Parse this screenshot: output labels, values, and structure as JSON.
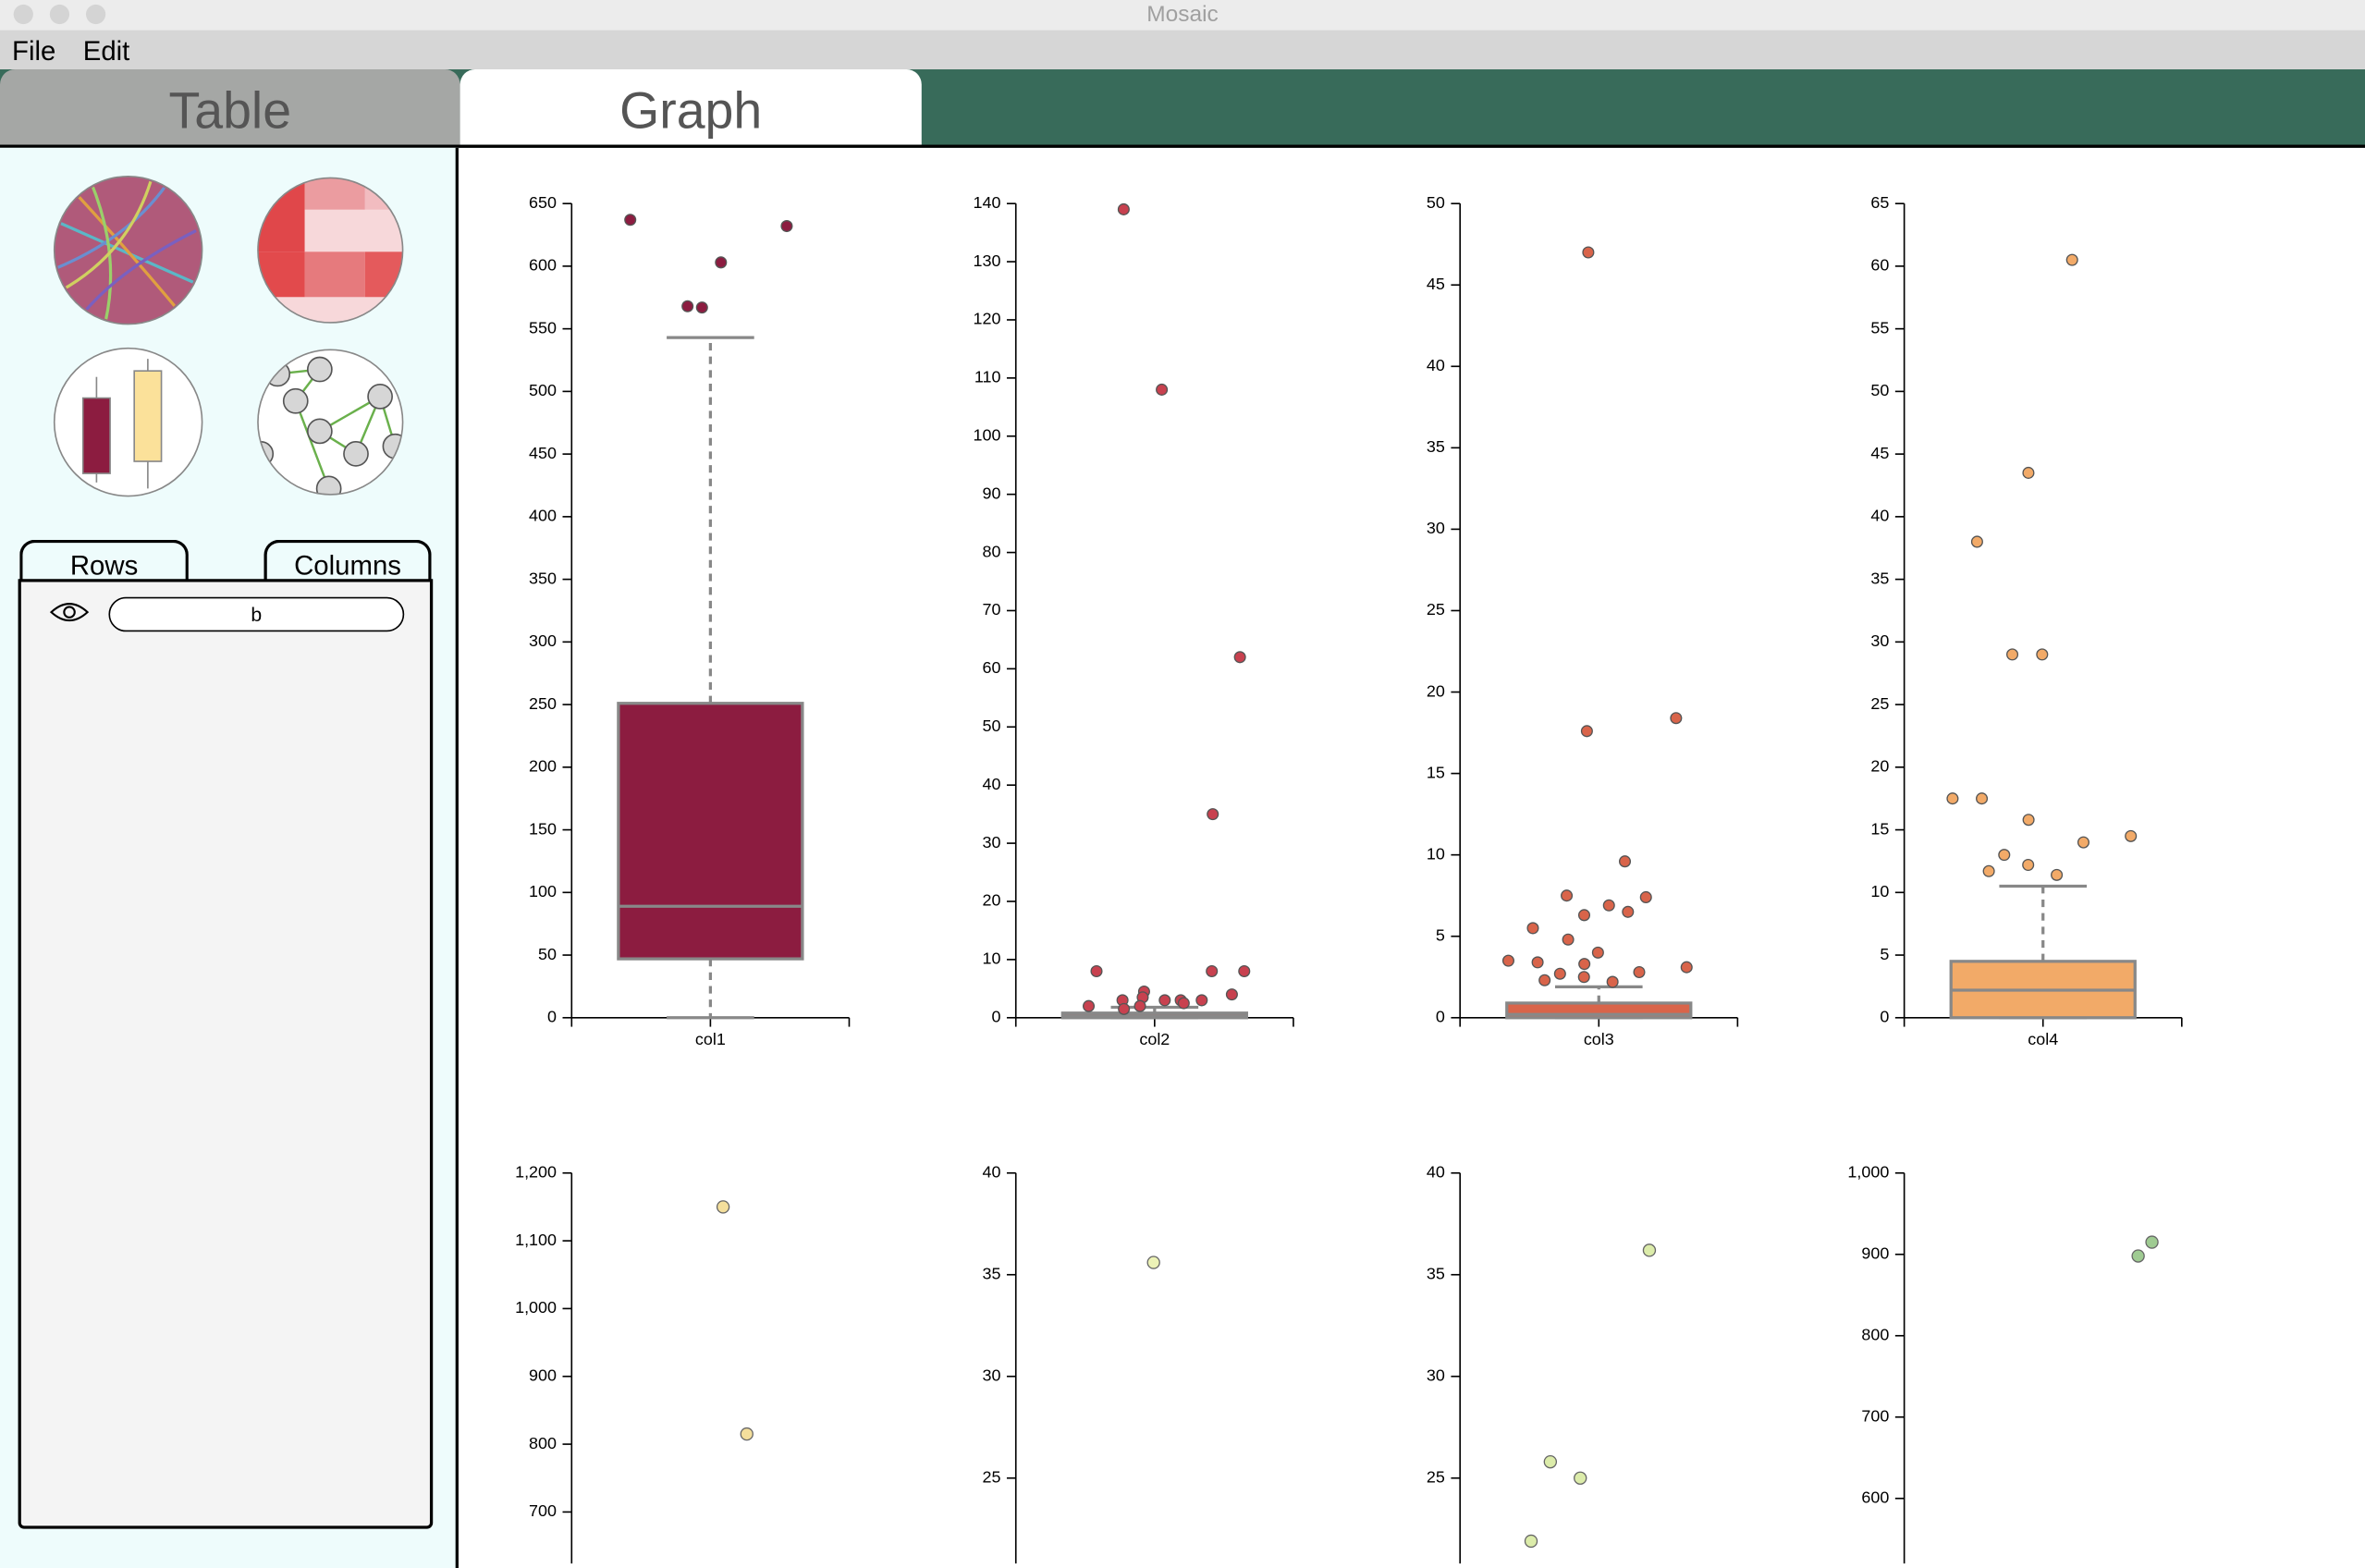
{
  "window": {
    "title": "Mosaic"
  },
  "menu": [
    "File",
    "Edit"
  ],
  "tabs": [
    "Table",
    "Graph"
  ],
  "sidebar": {
    "tabs": [
      "Rows",
      "Columns"
    ],
    "filter": "b"
  },
  "chart_data": [
    {
      "type": "box",
      "categories": [
        "col1"
      ],
      "color": "#8c1c40",
      "whisker_low": 0,
      "q1": 47,
      "median": 89,
      "q3": 251,
      "whisker_high": 543,
      "outliers": [
        632,
        637,
        603,
        568,
        567
      ],
      "ylim": [
        0,
        650
      ],
      "yticks": [
        0,
        50,
        100,
        150,
        200,
        250,
        300,
        350,
        400,
        450,
        500,
        550,
        600,
        650
      ]
    },
    {
      "type": "box",
      "categories": [
        "col2"
      ],
      "color": "#c8414f",
      "whisker_low": 0,
      "q1": 0,
      "median": 0.3,
      "q3": 0.8,
      "whisker_high": 1.8,
      "outliers": [
        139,
        108,
        62,
        35,
        8,
        8,
        8,
        4.5,
        4,
        3.5,
        3,
        3,
        3,
        3,
        2.5,
        2,
        2,
        1.5
      ],
      "ylim": [
        0,
        140
      ],
      "yticks": [
        0,
        10,
        20,
        30,
        40,
        50,
        60,
        70,
        80,
        90,
        100,
        110,
        120,
        130,
        140
      ]
    },
    {
      "type": "box",
      "categories": [
        "col3"
      ],
      "color": "#d9644a",
      "whisker_low": 0,
      "q1": 0,
      "median": 0.2,
      "q3": 0.9,
      "whisker_high": 1.9,
      "outliers": [
        47,
        18.4,
        17.6,
        9.6,
        7.5,
        7.4,
        6.9,
        6.5,
        6.3,
        5.5,
        4.8,
        4,
        3.5,
        3.4,
        3.3,
        3.1,
        2.8,
        2.7,
        2.5,
        2.3,
        2.2
      ],
      "ylim": [
        0,
        50
      ],
      "yticks": [
        0,
        5,
        10,
        15,
        20,
        25,
        30,
        35,
        40,
        45,
        50
      ]
    },
    {
      "type": "box",
      "categories": [
        "col4"
      ],
      "color": "#f2aa68",
      "whisker_low": 0,
      "q1": 0,
      "median": 2.2,
      "q3": 4.5,
      "whisker_high": 10.5,
      "outliers": [
        60.5,
        43.5,
        38,
        29,
        29,
        17.5,
        17.5,
        15.8,
        14.5,
        14,
        13,
        12.2,
        11.7,
        11.4
      ],
      "ylim": [
        0,
        65
      ],
      "yticks": [
        0,
        5,
        10,
        15,
        20,
        25,
        30,
        35,
        40,
        45,
        50,
        55,
        60,
        65
      ]
    },
    {
      "type": "strip",
      "color": "#f4df9c",
      "values": [
        1150,
        815
      ],
      "ylim": [
        624,
        1200
      ],
      "yticks": [
        700,
        800,
        900,
        {
          "value": 1000,
          "label": "1,000"
        },
        {
          "value": 1100,
          "label": "1,100"
        },
        {
          "value": 1200,
          "label": "1,200"
        }
      ]
    },
    {
      "type": "strip",
      "color": "#ecf2b6",
      "values": [
        35.6
      ],
      "ylim": [
        20.8,
        40
      ],
      "yticks": [
        25,
        30,
        35,
        40
      ]
    },
    {
      "type": "strip",
      "color": "#dcecaa",
      "values": [
        36.2,
        25.8,
        25,
        21.9
      ],
      "ylim": [
        20.8,
        40
      ],
      "yticks": [
        25,
        30,
        35,
        40
      ]
    },
    {
      "type": "strip",
      "color": "#9fcb92",
      "values": [
        915,
        898
      ],
      "ylim": [
        520,
        1000
      ],
      "yticks": [
        600,
        700,
        800,
        900,
        {
          "value": 1000,
          "label": "1,000"
        }
      ]
    }
  ]
}
